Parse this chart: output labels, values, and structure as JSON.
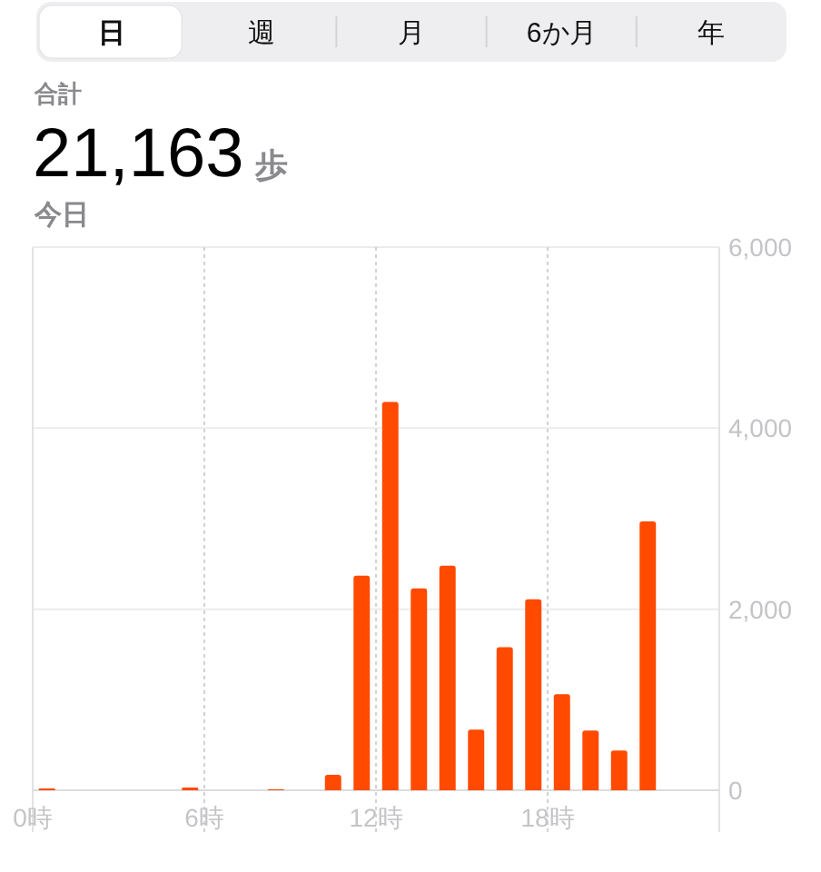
{
  "chart_data": {
    "type": "bar",
    "title": "21,163 歩",
    "subtitle": "今日",
    "annotations": [
      "合計",
      "日",
      "週",
      "月",
      "6か月",
      "年"
    ],
    "x": [
      0.5,
      5.5,
      8.5,
      10.5,
      11.5,
      12.5,
      13.5,
      14.5,
      15.5,
      16.5,
      17.5,
      18.5,
      19.5,
      20.5,
      21.5
    ],
    "values": [
      20,
      30,
      10,
      170,
      2370,
      4290,
      2230,
      2480,
      670,
      1580,
      2110,
      1060,
      660,
      440,
      2970
    ],
    "color": "#ff4a00",
    "xlim": [
      0,
      24
    ],
    "xticks": [
      {
        "value": 0,
        "label": "0時"
      },
      {
        "value": 6,
        "label": "6時"
      },
      {
        "value": 12,
        "label": "12時"
      },
      {
        "value": 18,
        "label": "18時"
      }
    ],
    "ylim": [
      0,
      6000
    ],
    "yticks": [
      0,
      {
        "value": 2000,
        "label": "2,000"
      },
      {
        "value": 4000,
        "label": "4,000"
      },
      {
        "value": 6000,
        "label": "6,000"
      }
    ],
    "grid": true
  }
}
